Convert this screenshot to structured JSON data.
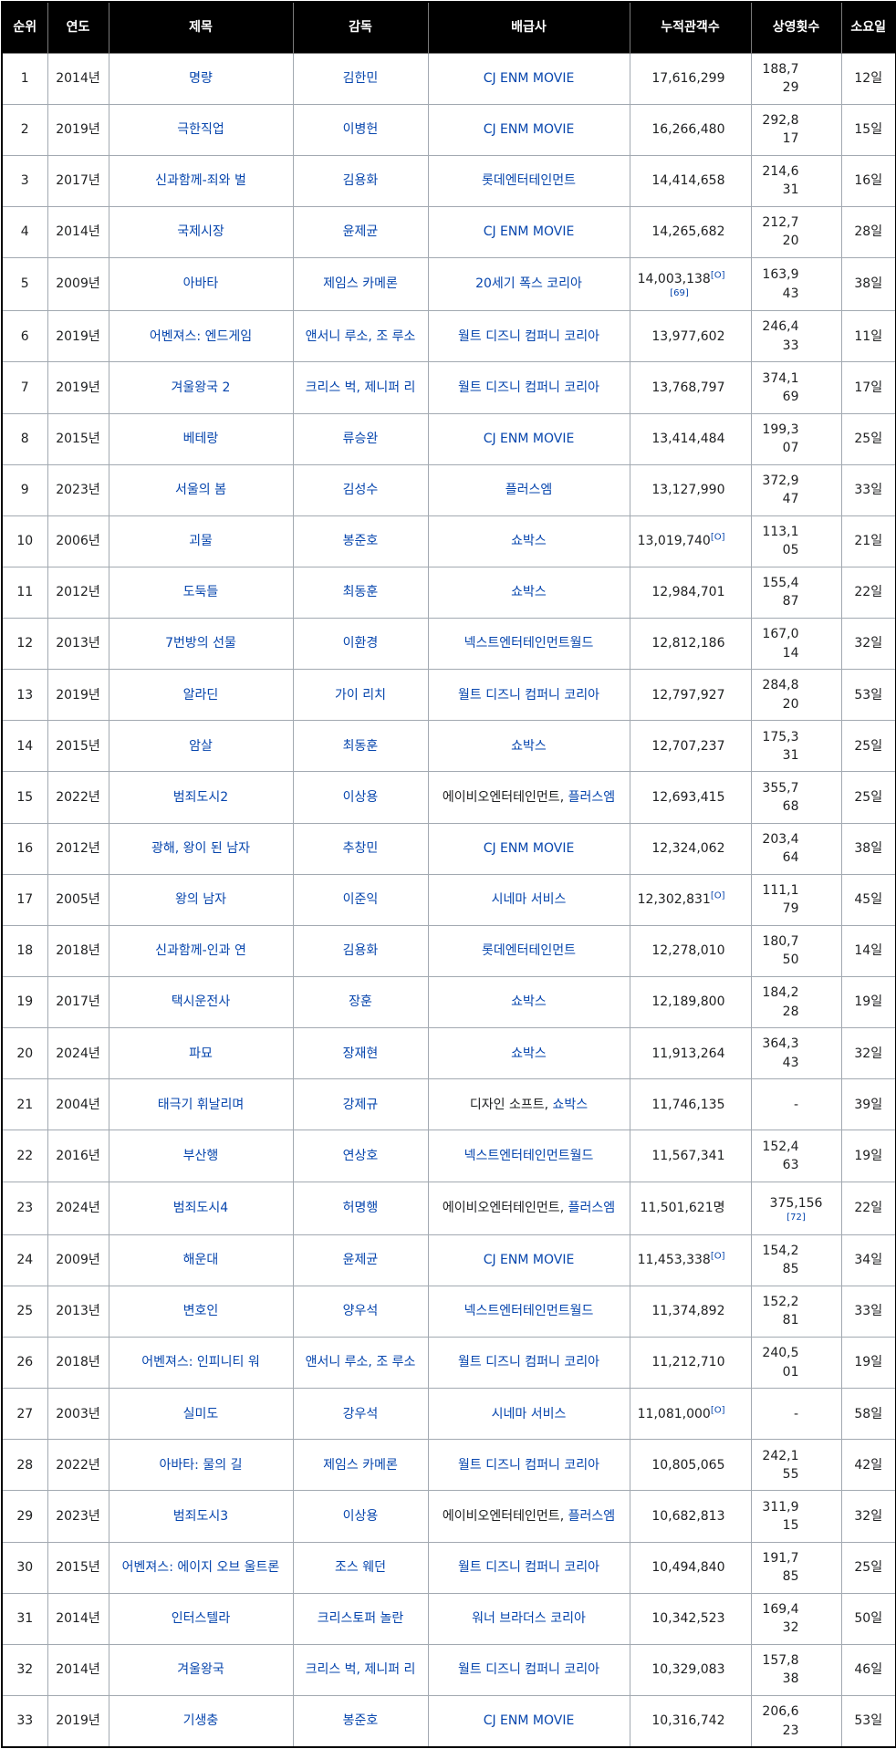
{
  "headers": [
    "순위",
    "연도",
    "제목",
    "감독",
    "배급사",
    "누적관객수",
    "상영횟수",
    "소요일"
  ],
  "rows": [
    {
      "rank": "1",
      "year": "2014년",
      "title": "명량",
      "director": "김한민",
      "distributor": [
        {
          "text": "CJ ENM MOVIE",
          "link": true
        }
      ],
      "audience": "17,616,299",
      "screenings": "188,729",
      "days": "12일"
    },
    {
      "rank": "2",
      "year": "2019년",
      "title": "극한직업",
      "director": "이병헌",
      "distributor": [
        {
          "text": "CJ ENM MOVIE",
          "link": true
        }
      ],
      "audience": "16,266,480",
      "screenings": "292,817",
      "days": "15일"
    },
    {
      "rank": "3",
      "year": "2017년",
      "title": "신과함께-죄와 벌",
      "director": "김용화",
      "distributor": [
        {
          "text": "롯데엔터테인먼트",
          "link": true
        }
      ],
      "audience": "14,414,658",
      "screenings": "214,631",
      "days": "16일"
    },
    {
      "rank": "4",
      "year": "2014년",
      "title": "국제시장",
      "director": "윤제균",
      "distributor": [
        {
          "text": "CJ ENM MOVIE",
          "link": true
        }
      ],
      "audience": "14,265,682",
      "screenings": "212,720",
      "days": "28일"
    },
    {
      "rank": "5",
      "year": "2009년",
      "title": "아바타",
      "director": "제임스 카메론",
      "distributor": [
        {
          "text": "20세기 폭스 코리아",
          "link": true
        }
      ],
      "audience": "14,003,138",
      "audience_ref": "[O]",
      "audience_ref2": "[69]",
      "screenings": "163,943",
      "days": "38일"
    },
    {
      "rank": "6",
      "year": "2019년",
      "title": "어벤져스: 엔드게임",
      "director": "앤서니 루소, 조 루소",
      "distributor": [
        {
          "text": "월트 디즈니 컴퍼니 코리아",
          "link": true
        }
      ],
      "audience": "13,977,602",
      "screenings": "246,433",
      "days": "11일"
    },
    {
      "rank": "7",
      "year": "2019년",
      "title": "겨울왕국 2",
      "director": "크리스 벅, 제니퍼 리",
      "distributor": [
        {
          "text": "월트 디즈니 컴퍼니 코리아",
          "link": true
        }
      ],
      "audience": "13,768,797",
      "screenings": "374,169",
      "days": "17일"
    },
    {
      "rank": "8",
      "year": "2015년",
      "title": "베테랑",
      "director": "류승완",
      "distributor": [
        {
          "text": "CJ ENM MOVIE",
          "link": true
        }
      ],
      "audience": "13,414,484",
      "screenings": "199,307",
      "days": "25일"
    },
    {
      "rank": "9",
      "year": "2023년",
      "title": "서울의 봄",
      "director": "김성수",
      "distributor": [
        {
          "text": "플러스엠",
          "link": true
        }
      ],
      "audience": "13,127,990",
      "screenings": "372,947",
      "days": "33일"
    },
    {
      "rank": "10",
      "year": "2006년",
      "title": "괴물",
      "director": "봉준호",
      "distributor": [
        {
          "text": "쇼박스",
          "link": true
        }
      ],
      "audience": "13,019,740",
      "audience_ref": "[O]",
      "screenings": "113,105",
      "days": "21일"
    },
    {
      "rank": "11",
      "year": "2012년",
      "title": "도둑들",
      "director": "최동훈",
      "distributor": [
        {
          "text": "쇼박스",
          "link": true
        }
      ],
      "audience": "12,984,701",
      "screenings": "155,487",
      "days": "22일"
    },
    {
      "rank": "12",
      "year": "2013년",
      "title": "7번방의 선물",
      "director": "이환경",
      "distributor": [
        {
          "text": "넥스트엔터테인먼트월드",
          "link": true
        }
      ],
      "audience": "12,812,186",
      "screenings": "167,014",
      "days": "32일"
    },
    {
      "rank": "13",
      "year": "2019년",
      "title": "알라딘",
      "director": "가이 리치",
      "distributor": [
        {
          "text": "월트 디즈니 컴퍼니 코리아",
          "link": true
        }
      ],
      "audience": "12,797,927",
      "screenings": "284,820",
      "days": "53일"
    },
    {
      "rank": "14",
      "year": "2015년",
      "title": "암살",
      "director": "최동훈",
      "distributor": [
        {
          "text": "쇼박스",
          "link": true
        }
      ],
      "audience": "12,707,237",
      "screenings": "175,331",
      "days": "25일"
    },
    {
      "rank": "15",
      "year": "2022년",
      "title": "범죄도시2",
      "director": "이상용",
      "distributor": [
        {
          "text": "에이비오엔터테인먼트",
          "link": false
        },
        {
          "text": ", ",
          "link": false
        },
        {
          "text": "플러스엠",
          "link": true
        }
      ],
      "audience": "12,693,415",
      "screenings": "355,768",
      "days": "25일"
    },
    {
      "rank": "16",
      "year": "2012년",
      "title": "광해, 왕이 된 남자",
      "director": "추창민",
      "distributor": [
        {
          "text": "CJ ENM MOVIE",
          "link": true
        }
      ],
      "audience": "12,324,062",
      "screenings": "203,464",
      "days": "38일"
    },
    {
      "rank": "17",
      "year": "2005년",
      "title": "왕의 남자",
      "director": "이준익",
      "distributor": [
        {
          "text": "시네마 서비스",
          "link": true
        }
      ],
      "audience": "12,302,831",
      "audience_ref": "[O]",
      "screenings": "111,179",
      "days": "45일"
    },
    {
      "rank": "18",
      "year": "2018년",
      "title": "신과함께-인과 연",
      "director": "김용화",
      "distributor": [
        {
          "text": "롯데엔터테인먼트",
          "link": true
        }
      ],
      "audience": "12,278,010",
      "screenings": "180,750",
      "days": "14일"
    },
    {
      "rank": "19",
      "year": "2017년",
      "title": "택시운전사",
      "director": "장훈",
      "distributor": [
        {
          "text": "쇼박스",
          "link": true
        }
      ],
      "audience": "12,189,800",
      "screenings": "184,228",
      "days": "19일"
    },
    {
      "rank": "20",
      "year": "2024년",
      "title": "파묘",
      "director": "장재현",
      "distributor": [
        {
          "text": "쇼박스",
          "link": true
        }
      ],
      "audience": "11,913,264",
      "screenings": "364,343",
      "days": "32일"
    },
    {
      "rank": "21",
      "year": "2004년",
      "title": "태극기 휘날리며",
      "director": "강제규",
      "distributor": [
        {
          "text": "디자인 소프트",
          "link": false
        },
        {
          "text": ", ",
          "link": false
        },
        {
          "text": "쇼박스",
          "link": true
        }
      ],
      "audience": "11,746,135",
      "screenings": "-",
      "days": "39일"
    },
    {
      "rank": "22",
      "year": "2016년",
      "title": "부산행",
      "director": "연상호",
      "distributor": [
        {
          "text": "넥스트엔터테인먼트월드",
          "link": true
        }
      ],
      "audience": "11,567,341",
      "screenings": "152,463",
      "days": "19일"
    },
    {
      "rank": "23",
      "year": "2024년",
      "title": "범죄도시4",
      "director": "허명행",
      "distributor": [
        {
          "text": "에이비오엔터테인먼트",
          "link": false
        },
        {
          "text": ", ",
          "link": false
        },
        {
          "text": "플러스엠",
          "link": true
        }
      ],
      "audience": "11,501,621명",
      "screenings": "375,156",
      "screenings_ref": "[72]",
      "days": "22일"
    },
    {
      "rank": "24",
      "year": "2009년",
      "title": "해운대",
      "director": "윤제균",
      "distributor": [
        {
          "text": "CJ ENM MOVIE",
          "link": true
        }
      ],
      "audience": "11,453,338",
      "audience_ref": "[O]",
      "screenings": "154,285",
      "days": "34일"
    },
    {
      "rank": "25",
      "year": "2013년",
      "title": "변호인",
      "director": "양우석",
      "distributor": [
        {
          "text": "넥스트엔터테인먼트월드",
          "link": true
        }
      ],
      "audience": "11,374,892",
      "screenings": "152,281",
      "days": "33일"
    },
    {
      "rank": "26",
      "year": "2018년",
      "title": "어벤져스: 인피니티 워",
      "director": "앤서니 루소, 조 루소",
      "distributor": [
        {
          "text": "월트 디즈니 컴퍼니 코리아",
          "link": true
        }
      ],
      "audience": "11,212,710",
      "screenings": "240,501",
      "days": "19일"
    },
    {
      "rank": "27",
      "year": "2003년",
      "title": "실미도",
      "director": "강우석",
      "distributor": [
        {
          "text": "시네마 서비스",
          "link": true
        }
      ],
      "audience": "11,081,000",
      "audience_ref": "[O]",
      "screenings": "-",
      "days": "58일"
    },
    {
      "rank": "28",
      "year": "2022년",
      "title": "아바타: 물의 길",
      "director": "제임스 카메론",
      "distributor": [
        {
          "text": "월트 디즈니 컴퍼니 코리아",
          "link": true
        }
      ],
      "audience": "10,805,065",
      "screenings": "242,155",
      "days": "42일"
    },
    {
      "rank": "29",
      "year": "2023년",
      "title": "범죄도시3",
      "director": "이상용",
      "distributor": [
        {
          "text": "에이비오엔터테인먼트",
          "link": false
        },
        {
          "text": ", ",
          "link": false
        },
        {
          "text": "플러스엠",
          "link": true
        }
      ],
      "audience": "10,682,813",
      "screenings": "311,915",
      "days": "32일"
    },
    {
      "rank": "30",
      "year": "2015년",
      "title": "어벤져스: 에이지 오브 울트론",
      "director": "조스 웨던",
      "distributor": [
        {
          "text": "월트 디즈니 컴퍼니 코리아",
          "link": true
        }
      ],
      "audience": "10,494,840",
      "screenings": "191,785",
      "days": "25일"
    },
    {
      "rank": "31",
      "year": "2014년",
      "title": "인터스텔라",
      "director": "크리스토퍼 놀란",
      "distributor": [
        {
          "text": "워너 브라더스 코리아",
          "link": true
        }
      ],
      "audience": "10,342,523",
      "screenings": "169,432",
      "days": "50일"
    },
    {
      "rank": "32",
      "year": "2014년",
      "title": "겨울왕국",
      "director": "크리스 벅, 제니퍼 리",
      "distributor": [
        {
          "text": "월트 디즈니 컴퍼니 코리아",
          "link": true
        }
      ],
      "audience": "10,329,083",
      "screenings": "157,838",
      "days": "46일"
    },
    {
      "rank": "33",
      "year": "2019년",
      "title": "기생충",
      "director": "봉준호",
      "distributor": [
        {
          "text": "CJ ENM MOVIE",
          "link": true
        }
      ],
      "audience": "10,316,742",
      "screenings": "206,623",
      "days": "53일"
    }
  ]
}
